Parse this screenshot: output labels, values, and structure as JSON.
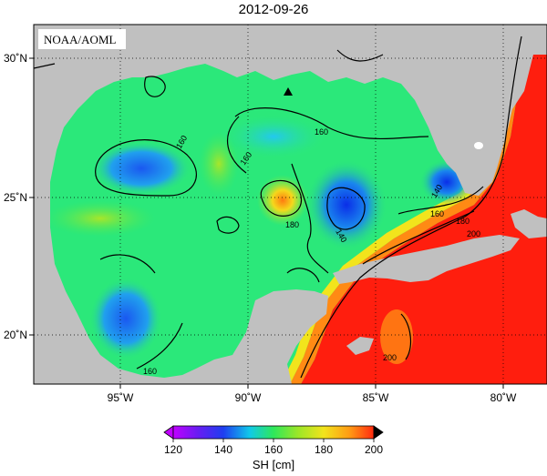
{
  "title": "2012-09-26",
  "credit": "NOAA/AOML",
  "lon_ticks": [
    "95˚W",
    "90˚W",
    "85˚W",
    "80˚W"
  ],
  "lat_ticks": [
    "30˚N",
    "25˚N",
    "20˚N"
  ],
  "contour_labels": [
    "160",
    "160",
    "160",
    "180",
    "140",
    "160",
    "180",
    "200",
    "200",
    "140",
    "160"
  ],
  "colorbar": {
    "title": "SH [cm]",
    "ticks": [
      "120",
      "140",
      "160",
      "180",
      "200"
    ],
    "range": [
      120,
      200
    ]
  },
  "colors": {
    "land": "#c0c0c0",
    "background": "#ffffff"
  }
}
